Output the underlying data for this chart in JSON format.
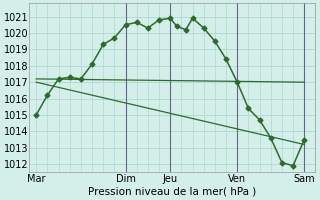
{
  "bg_color": "#d4eeea",
  "grid_color": "#b0d8d0",
  "line_color": "#2d6b2d",
  "ylabel": "Pression niveau de la mer( hPa )",
  "ylim": [
    1011.5,
    1021.8
  ],
  "yticks": [
    1012,
    1013,
    1014,
    1015,
    1016,
    1017,
    1018,
    1019,
    1020,
    1021
  ],
  "xtick_labels": [
    "Mar",
    "",
    "Dim",
    "Jeu",
    "",
    "Ven",
    "",
    "Sam"
  ],
  "xtick_positions": [
    0,
    2,
    4,
    6,
    7.5,
    9,
    10.5,
    12
  ],
  "series1_x": [
    0,
    0.5,
    1.0,
    1.5,
    2.0,
    2.5,
    3.0,
    3.5,
    4.0,
    4.5,
    5.0,
    5.5,
    6.0,
    6.3,
    6.7,
    7.0,
    7.5,
    8.0,
    8.5,
    9.0,
    9.5,
    10.0,
    10.5,
    11.0,
    11.5,
    12.0
  ],
  "series1_y": [
    1015.0,
    1016.2,
    1017.2,
    1017.3,
    1017.2,
    1018.1,
    1019.3,
    1019.7,
    1020.5,
    1020.65,
    1020.3,
    1020.8,
    1020.9,
    1020.4,
    1020.2,
    1020.9,
    1020.3,
    1019.5,
    1018.4,
    1017.0,
    1015.4,
    1014.7,
    1013.6,
    1012.1,
    1011.9,
    1013.5
  ],
  "series2_x": [
    0,
    12
  ],
  "series2_y": [
    1017.2,
    1017.0
  ],
  "series3_x": [
    0,
    12
  ],
  "series3_y": [
    1017.0,
    1013.2
  ],
  "vlines_x": [
    4,
    6,
    9,
    12
  ],
  "vline_color": "#666688",
  "fontsize": 7,
  "marker_size": 2.5,
  "linewidth1": 1.1,
  "linewidth2": 0.9
}
